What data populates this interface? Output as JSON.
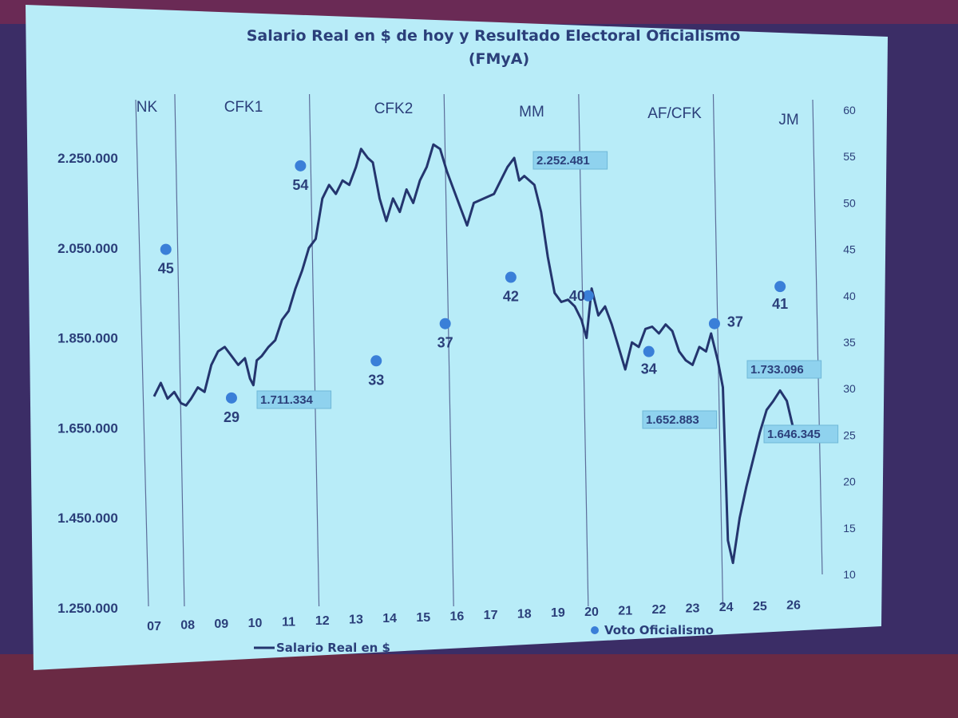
{
  "chart_data": {
    "type": "line",
    "title": "Salario Real en $ de hoy y Resultado Electoral Oficialismo",
    "subtitle": "(FMyA)",
    "x_ticks": [
      "07",
      "08",
      "09",
      "10",
      "11",
      "12",
      "13",
      "14",
      "15",
      "16",
      "17",
      "18",
      "19",
      "20",
      "21",
      "22",
      "23",
      "24",
      "25",
      "26"
    ],
    "y_left_ticks": [
      "2.250.000",
      "2.050.000",
      "1.850.000",
      "1.650.000",
      "1.450.000",
      "1.250.000"
    ],
    "y_left_values": [
      2250000,
      2050000,
      1850000,
      1650000,
      1450000,
      1250000
    ],
    "y_left_range": [
      1250000,
      2350000
    ],
    "y_right_ticks": [
      "60",
      "55",
      "50",
      "45",
      "40",
      "35",
      "30",
      "25",
      "20",
      "15",
      "10"
    ],
    "y_right_range": [
      10,
      60
    ],
    "periods": [
      {
        "label": "NK",
        "start": 2006.6,
        "end": 2007.9
      },
      {
        "label": "CFK1",
        "start": 2007.9,
        "end": 2011.9
      },
      {
        "label": "CFK2",
        "start": 2011.9,
        "end": 2015.9
      },
      {
        "label": "MM",
        "start": 2015.9,
        "end": 2019.9
      },
      {
        "label": "AF/CFK",
        "start": 2019.9,
        "end": 2023.9
      },
      {
        "label": "JM",
        "start": 2023.9,
        "end": 2026.2
      }
    ],
    "series": [
      {
        "name": "Salario Real en $",
        "points": [
          [
            2007.0,
            1720000
          ],
          [
            2007.2,
            1750000
          ],
          [
            2007.4,
            1715000
          ],
          [
            2007.6,
            1730000
          ],
          [
            2007.8,
            1705000
          ],
          [
            2007.95,
            1700000
          ],
          [
            2008.1,
            1715000
          ],
          [
            2008.3,
            1740000
          ],
          [
            2008.5,
            1730000
          ],
          [
            2008.7,
            1790000
          ],
          [
            2008.9,
            1820000
          ],
          [
            2009.1,
            1830000
          ],
          [
            2009.3,
            1810000
          ],
          [
            2009.5,
            1790000
          ],
          [
            2009.7,
            1805000
          ],
          [
            2009.85,
            1760000
          ],
          [
            2009.95,
            1745000
          ],
          [
            2010.05,
            1800000
          ],
          [
            2010.2,
            1810000
          ],
          [
            2010.4,
            1830000
          ],
          [
            2010.6,
            1845000
          ],
          [
            2010.8,
            1890000
          ],
          [
            2011.0,
            1910000
          ],
          [
            2011.2,
            1960000
          ],
          [
            2011.4,
            2000000
          ],
          [
            2011.6,
            2050000
          ],
          [
            2011.8,
            2070000
          ],
          [
            2012.0,
            2160000
          ],
          [
            2012.2,
            2190000
          ],
          [
            2012.4,
            2170000
          ],
          [
            2012.6,
            2200000
          ],
          [
            2012.8,
            2190000
          ],
          [
            2013.0,
            2230000
          ],
          [
            2013.15,
            2270000
          ],
          [
            2013.35,
            2250000
          ],
          [
            2013.5,
            2240000
          ],
          [
            2013.7,
            2160000
          ],
          [
            2013.9,
            2110000
          ],
          [
            2014.1,
            2160000
          ],
          [
            2014.3,
            2130000
          ],
          [
            2014.5,
            2180000
          ],
          [
            2014.7,
            2150000
          ],
          [
            2014.9,
            2200000
          ],
          [
            2015.1,
            2230000
          ],
          [
            2015.3,
            2280000
          ],
          [
            2015.5,
            2270000
          ],
          [
            2015.7,
            2220000
          ],
          [
            2015.9,
            2180000
          ],
          [
            2016.1,
            2140000
          ],
          [
            2016.3,
            2100000
          ],
          [
            2016.5,
            2150000
          ],
          [
            2016.8,
            2160000
          ],
          [
            2017.1,
            2170000
          ],
          [
            2017.3,
            2200000
          ],
          [
            2017.5,
            2230000
          ],
          [
            2017.7,
            2250000
          ],
          [
            2017.85,
            2200000
          ],
          [
            2018.0,
            2210000
          ],
          [
            2018.3,
            2190000
          ],
          [
            2018.5,
            2130000
          ],
          [
            2018.7,
            2030000
          ],
          [
            2018.9,
            1950000
          ],
          [
            2019.1,
            1930000
          ],
          [
            2019.3,
            1935000
          ],
          [
            2019.5,
            1920000
          ],
          [
            2019.7,
            1890000
          ],
          [
            2019.85,
            1850000
          ],
          [
            2020.0,
            1960000
          ],
          [
            2020.2,
            1900000
          ],
          [
            2020.4,
            1920000
          ],
          [
            2020.6,
            1880000
          ],
          [
            2020.8,
            1830000
          ],
          [
            2021.0,
            1780000
          ],
          [
            2021.2,
            1840000
          ],
          [
            2021.4,
            1830000
          ],
          [
            2021.6,
            1870000
          ],
          [
            2021.8,
            1875000
          ],
          [
            2022.0,
            1860000
          ],
          [
            2022.2,
            1880000
          ],
          [
            2022.4,
            1865000
          ],
          [
            2022.6,
            1820000
          ],
          [
            2022.8,
            1800000
          ],
          [
            2023.0,
            1790000
          ],
          [
            2023.2,
            1830000
          ],
          [
            2023.4,
            1820000
          ],
          [
            2023.55,
            1860000
          ],
          [
            2023.75,
            1800000
          ],
          [
            2023.9,
            1740000
          ],
          [
            2024.05,
            1400000
          ],
          [
            2024.2,
            1350000
          ],
          [
            2024.4,
            1450000
          ],
          [
            2024.6,
            1520000
          ],
          [
            2024.8,
            1580000
          ],
          [
            2025.0,
            1640000
          ],
          [
            2025.2,
            1690000
          ],
          [
            2025.4,
            1710000
          ],
          [
            2025.6,
            1733096
          ],
          [
            2025.8,
            1710000
          ],
          [
            2026.0,
            1646345
          ]
        ]
      },
      {
        "name": "Voto Oficialismo",
        "points": [
          [
            2007.35,
            45
          ],
          [
            2009.3,
            29
          ],
          [
            2011.35,
            54
          ],
          [
            2013.6,
            33
          ],
          [
            2015.65,
            37
          ],
          [
            2017.6,
            42
          ],
          [
            2019.9,
            40
          ],
          [
            2021.7,
            34
          ],
          [
            2023.65,
            37
          ],
          [
            2025.6,
            41
          ]
        ]
      }
    ],
    "vote_labels": [
      "45",
      "29",
      "54",
      "33",
      "37",
      "42",
      "40",
      "34",
      "37",
      "41"
    ],
    "value_callouts": [
      "1.711.334",
      "2.252.481",
      "1.652.883",
      "1.733.096",
      "1.646.345"
    ],
    "legend": [
      "Salario Real en $",
      "Voto Oficialismo"
    ],
    "legend_position": "bottom",
    "grid": false,
    "colors": {
      "panel": "#b8ecf8",
      "line": "#24356e",
      "dots": "#3a7fd8",
      "text": "#2b3f7a"
    }
  }
}
